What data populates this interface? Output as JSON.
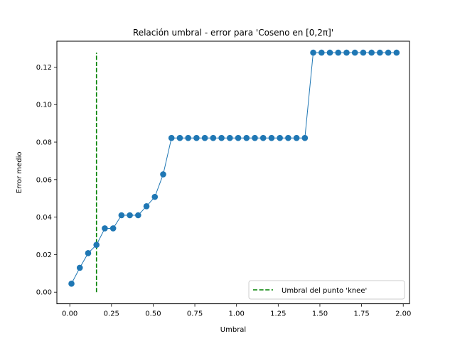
{
  "chart_data": {
    "type": "line",
    "title": "Relación umbral - error para 'Coseno en [0,2π]'",
    "xlabel": "Umbral",
    "ylabel": "Error medio",
    "xlim": [
      -0.0775,
      2.0375
    ],
    "ylim": [
      -0.0062,
      0.1338
    ],
    "xticks": [
      0.0,
      0.25,
      0.5,
      0.75,
      1.0,
      1.25,
      1.5,
      1.75,
      2.0
    ],
    "xtick_labels": [
      "0.00",
      "0.25",
      "0.50",
      "0.75",
      "1.00",
      "1.25",
      "1.50",
      "1.75",
      "2.00"
    ],
    "yticks": [
      0.0,
      0.02,
      0.04,
      0.06,
      0.08,
      0.1,
      0.12
    ],
    "ytick_labels": [
      "0.00",
      "0.02",
      "0.04",
      "0.06",
      "0.08",
      "0.10",
      "0.12"
    ],
    "grid": false,
    "legend_position": "lower-right",
    "series": [
      {
        "kind": "line-markers",
        "color": "#1f77b4",
        "x": [
          0.01,
          0.06,
          0.11,
          0.16,
          0.21,
          0.26,
          0.31,
          0.36,
          0.41,
          0.46,
          0.51,
          0.56,
          0.61,
          0.66,
          0.71,
          0.76,
          0.81,
          0.86,
          0.91,
          0.96,
          1.01,
          1.06,
          1.11,
          1.16,
          1.21,
          1.26,
          1.31,
          1.36,
          1.41,
          1.46,
          1.51,
          1.56,
          1.61,
          1.66,
          1.71,
          1.76,
          1.81,
          1.86,
          1.91,
          1.96
        ],
        "y": [
          0.0045,
          0.013,
          0.0208,
          0.0252,
          0.034,
          0.034,
          0.041,
          0.041,
          0.041,
          0.0458,
          0.0508,
          0.0628,
          0.0822,
          0.0822,
          0.0822,
          0.0822,
          0.0822,
          0.0822,
          0.0822,
          0.0822,
          0.0822,
          0.0822,
          0.0822,
          0.0822,
          0.0822,
          0.0822,
          0.0822,
          0.0822,
          0.0822,
          0.1277,
          0.1277,
          0.1277,
          0.1277,
          0.1277,
          0.1277,
          0.1277,
          0.1277,
          0.1277,
          0.1277,
          0.1277
        ]
      },
      {
        "kind": "vertical-dashed-line",
        "name": "Umbral del punto 'knee'",
        "color": "#008000",
        "x": 0.16,
        "y_range": [
          0.0,
          0.1277
        ]
      }
    ]
  }
}
